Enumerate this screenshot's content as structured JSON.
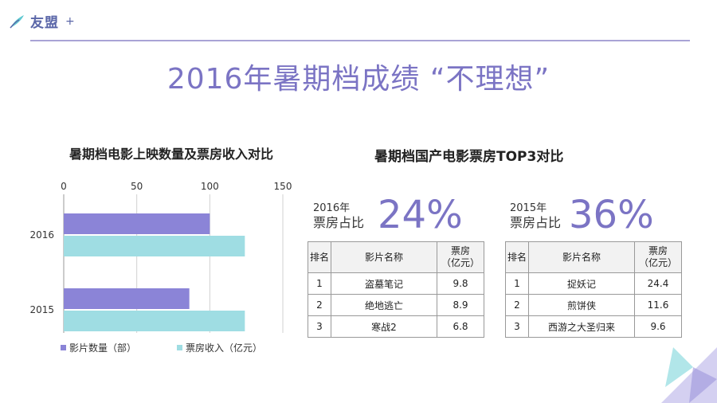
{
  "brand": {
    "name": "友盟",
    "plus": "+"
  },
  "page": {
    "title": "2016年暑期档成绩 “不理想”"
  },
  "colors": {
    "purple": "#8b84d7",
    "teal": "#9fdde3",
    "accent": "#7b74c4",
    "line": "#a9a3d6"
  },
  "chart_data": {
    "type": "bar",
    "orientation": "horizontal",
    "title": "暑期档电影上映数量及票房收入对比",
    "categories": [
      "2016",
      "2015"
    ],
    "series": [
      {
        "name": "影片数量（部）",
        "values": [
          100,
          86
        ]
      },
      {
        "name": "票房收入（亿元）",
        "values": [
          124,
          124
        ]
      }
    ],
    "xlim": [
      0,
      150
    ],
    "xticks": [
      "0",
      "50",
      "100",
      "150"
    ],
    "grid": true,
    "legend": "bottom"
  },
  "top3": {
    "title": "暑期档国产电影票房TOP3对比",
    "header": {
      "rank": "排名",
      "name": "影片名称",
      "box_line1": "票房",
      "box_line2": "（亿元）"
    },
    "y2016": {
      "year": "2016年",
      "label": "票房占比",
      "share": "24%",
      "rows": [
        {
          "rank": "1",
          "name": "盗墓笔记",
          "box": "9.8"
        },
        {
          "rank": "2",
          "name": "绝地逃亡",
          "box": "8.9"
        },
        {
          "rank": "3",
          "name": "寒战2",
          "box": "6.8"
        }
      ]
    },
    "y2015": {
      "year": "2015年",
      "label": "票房占比",
      "share": "36%",
      "rows": [
        {
          "rank": "1",
          "name": "捉妖记",
          "box": "24.4"
        },
        {
          "rank": "2",
          "name": "煎饼侠",
          "box": "11.6"
        },
        {
          "rank": "3",
          "name": "西游之大圣归来",
          "box": "9.6"
        }
      ]
    }
  }
}
